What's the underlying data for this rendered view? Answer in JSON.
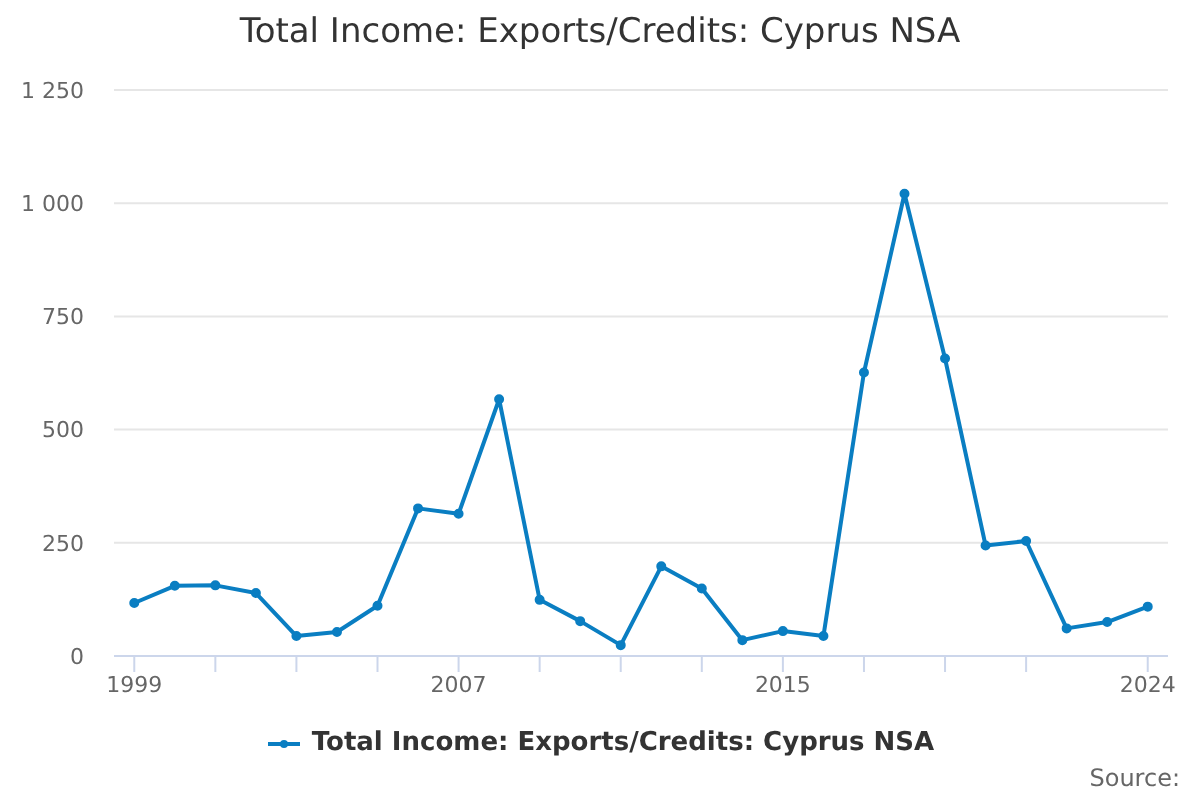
{
  "chart_data": {
    "type": "line",
    "title": "Total Income: Exports/Credits: Cyprus NSA",
    "x": [
      1999,
      2000,
      2001,
      2002,
      2003,
      2004,
      2005,
      2006,
      2007,
      2008,
      2009,
      2010,
      2011,
      2012,
      2013,
      2014,
      2015,
      2016,
      2017,
      2018,
      2019,
      2020,
      2021,
      2022,
      2023,
      2024
    ],
    "series": [
      {
        "name": "Total Income: Exports/Credits: Cyprus NSA",
        "color": "#0a7ec2",
        "values": [
          117,
          155,
          156,
          139,
          44,
          53,
          111,
          326,
          314,
          567,
          124,
          77,
          24,
          198,
          149,
          35,
          55,
          44,
          626,
          1021,
          657,
          244,
          254,
          61,
          75,
          109
        ]
      }
    ],
    "xlim": [
      1998.5,
      2024.5
    ],
    "xticks": [
      1999,
      {
        "value": 2001,
        "label": null
      },
      {
        "value": 2003,
        "label": null
      },
      {
        "value": 2005,
        "label": null
      },
      2007,
      {
        "value": 2009,
        "label": null
      },
      {
        "value": 2011,
        "label": null
      },
      {
        "value": 2013,
        "label": null
      },
      2015,
      {
        "value": 2017,
        "label": null
      },
      {
        "value": 2019,
        "label": null
      },
      {
        "value": 2021,
        "label": null
      },
      2024
    ],
    "ylim": [
      0,
      1250
    ],
    "yticks": [
      0,
      250,
      500,
      750,
      {
        "value": 1000,
        "label": "1 000"
      },
      {
        "value": 1250,
        "label": "1 250"
      }
    ],
    "grid": "y",
    "legend": "bottom",
    "marker": "circle",
    "line_style": "solid",
    "annotations": [
      "Source:"
    ]
  }
}
